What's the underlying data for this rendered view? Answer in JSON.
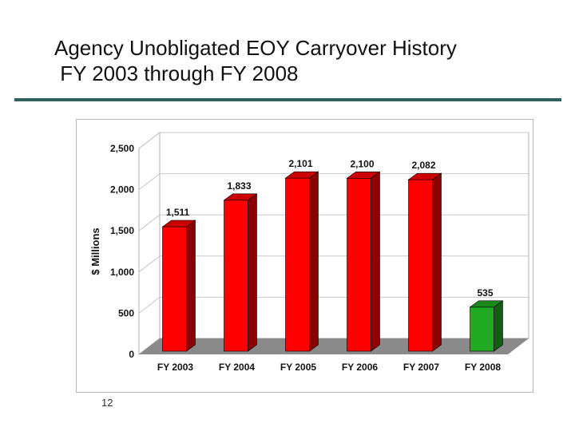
{
  "slide": {
    "title_line1": "Agency Unobligated EOY Carryover History",
    "title_line2": " FY 2003 through FY 2008",
    "page_number": "12"
  },
  "chart_data": {
    "type": "bar",
    "title": "",
    "xlabel": "",
    "ylabel": "$ Millions",
    "categories": [
      "FY 2003",
      "FY 2004",
      "FY 2005",
      "FY 2006",
      "FY 2007",
      "FY 2008"
    ],
    "values": [
      1511,
      1833,
      2101,
      2100,
      2082,
      535
    ],
    "value_labels": [
      "1,511",
      "1,833",
      "2,101",
      "2,100",
      "2,082",
      "535"
    ],
    "ylim": [
      0,
      2500
    ],
    "yticks": [
      0,
      500,
      1000,
      1500,
      2000,
      2500
    ],
    "ytick_labels": [
      "0",
      "500",
      "1,000",
      "1,500",
      "2,000",
      "2,500"
    ],
    "grid": true,
    "legend": "none",
    "three_d": true,
    "colors": {
      "bar_default": "#ff0000",
      "bar_highlight": "#22aa22",
      "floor": "#8a8a8a",
      "grid": "#c8c8c8"
    },
    "highlight_index": 5
  }
}
